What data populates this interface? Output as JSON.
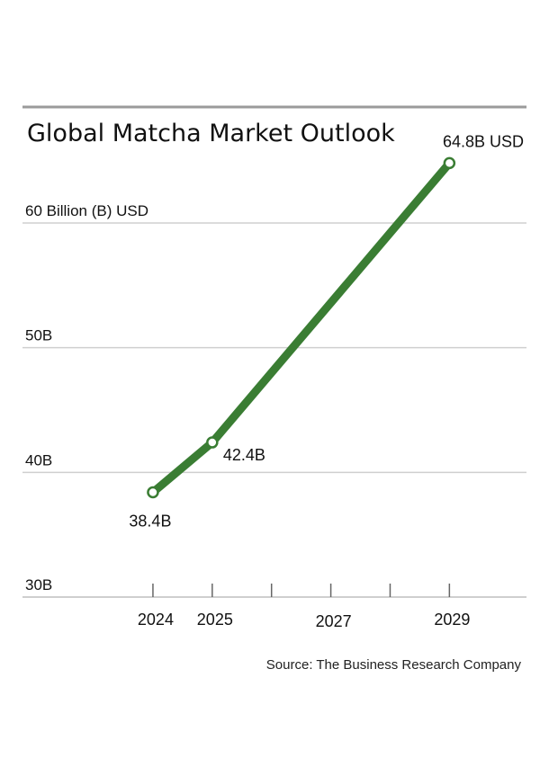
{
  "chart_data": {
    "type": "line",
    "title": "Global Matcha Market Outlook",
    "ylabel": "",
    "xlabel": "",
    "x_ticks": [
      2024,
      2025,
      2026,
      2027,
      2028,
      2029
    ],
    "x_tick_labels": [
      {
        "x": 2024,
        "label": "2024"
      },
      {
        "x": 2025,
        "label": "2025"
      },
      {
        "x": 2027,
        "label": "2027"
      },
      {
        "x": 2029,
        "label": "2029"
      }
    ],
    "y_ticks": [
      {
        "y": 30,
        "label": "30B"
      },
      {
        "y": 40,
        "label": "40B"
      },
      {
        "y": 50,
        "label": "50B"
      },
      {
        "y": 60,
        "label": "60 Billion (B) USD"
      }
    ],
    "ylim": [
      30,
      69.3
    ],
    "xlim": [
      2021.8,
      2030.3
    ],
    "grid": true,
    "series": [
      {
        "color": "#3a7d33",
        "points": [
          {
            "x": 2024,
            "y": 38.4,
            "label": "38.4B"
          },
          {
            "x": 2025,
            "y": 42.4,
            "label": "42.4B"
          },
          {
            "x": 2029,
            "y": 64.8,
            "label": "64.8B USD"
          }
        ]
      }
    ],
    "source": "Source: The Business Research Company"
  }
}
